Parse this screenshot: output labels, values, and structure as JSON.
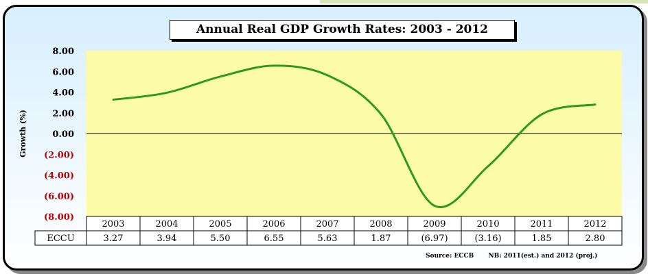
{
  "chart_data": {
    "type": "line",
    "title": "Annual Real GDP Growth Rates: 2003 - 2012",
    "ylabel": "Growth (%)",
    "ylim": [
      -8,
      8
    ],
    "yticks": [
      "8.00",
      "6.00",
      "4.00",
      "2.00",
      "0.00",
      "(2.00)",
      "(4.00)",
      "(6.00)",
      "(8.00)"
    ],
    "categories": [
      "2003",
      "2004",
      "2005",
      "2006",
      "2007",
      "2008",
      "2009",
      "2010",
      "2011",
      "2012"
    ],
    "series": [
      {
        "name": "ECCU",
        "values": [
          3.27,
          3.94,
          5.5,
          6.55,
          5.63,
          1.87,
          -6.97,
          -3.16,
          1.85,
          2.8
        ],
        "labels": [
          "3.27",
          "3.94",
          "5.50",
          "6.55",
          "5.63",
          "1.87",
          "(6.97)",
          "(3.16)",
          "1.85",
          "2.80"
        ]
      }
    ],
    "source": "Source:  ECCB",
    "note": "NB:  2011(est.) and 2012 (proj.)",
    "grid": false,
    "colors": {
      "line": "#2e9a1a",
      "plot_bg": "#fbfba8",
      "negative_tick": "#c00000"
    }
  }
}
